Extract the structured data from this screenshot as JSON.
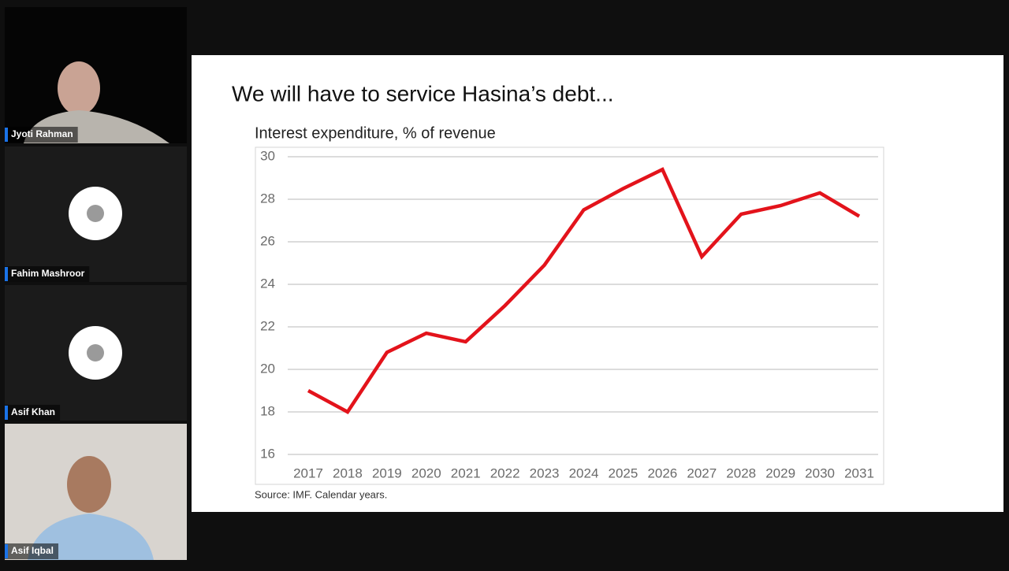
{
  "participants": [
    {
      "name": "Jyoti Rahman"
    },
    {
      "name": "Fahim Mashroor"
    },
    {
      "name": "Asif Khan"
    },
    {
      "name": "Asif Iqbal"
    }
  ],
  "slide": {
    "title": "We will have to service Hasina’s debt...",
    "source": "Source: IMF. Calendar years."
  },
  "chart_data": {
    "type": "line",
    "title": "Interest expenditure, % of revenue",
    "categories": [
      "2017",
      "2018",
      "2019",
      "2020",
      "2021",
      "2022",
      "2023",
      "2024",
      "2025",
      "2026",
      "2027",
      "2028",
      "2029",
      "2030",
      "2031"
    ],
    "series": [
      {
        "name": "Interest expenditure",
        "color": "#e3131b",
        "values": [
          19.0,
          18.0,
          20.8,
          21.7,
          21.3,
          23.0,
          24.9,
          27.5,
          28.5,
          29.4,
          25.3,
          27.3,
          27.7,
          28.3,
          27.2
        ]
      }
    ],
    "ylim": [
      16,
      30
    ],
    "yticks": [
      16,
      18,
      20,
      22,
      24,
      26,
      28,
      30
    ],
    "grid": true,
    "legend": false
  }
}
